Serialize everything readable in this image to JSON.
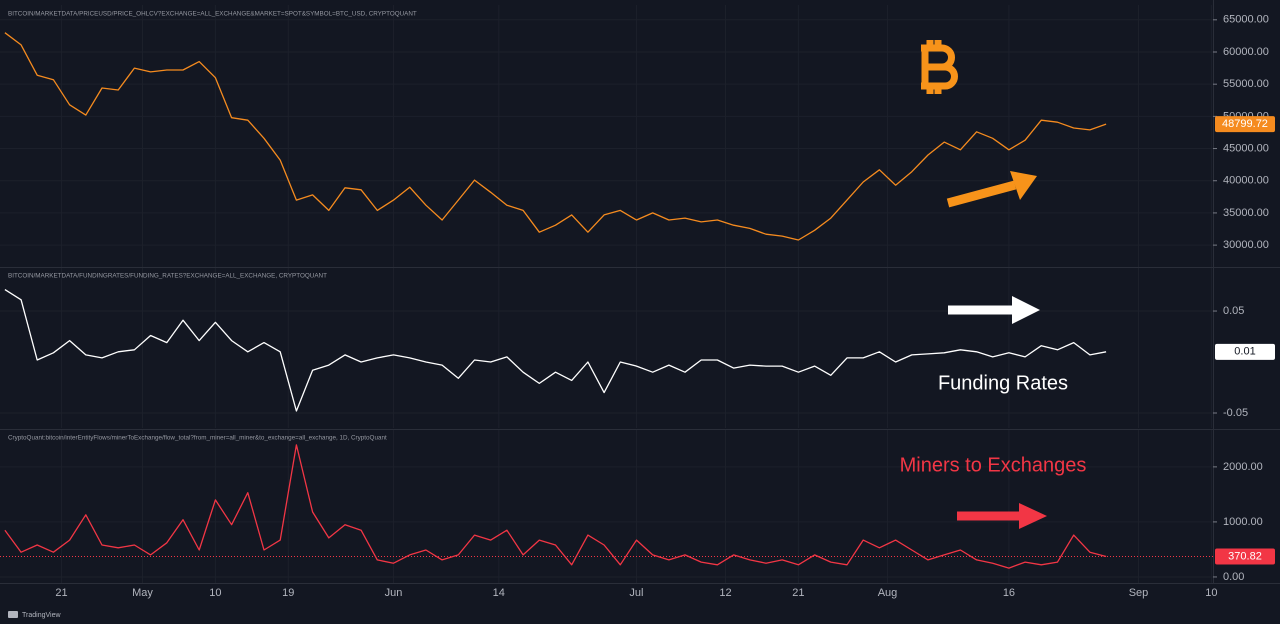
{
  "chart_data": [
    {
      "type": "line",
      "title": "BITCOIN/MARKETDATA/PRICEUSD/PRICE_OHLCV?EXCHANGE=ALL_EXCHANGE&MARKET=SPOT&SYMBOL=BTC_USD, CRYPTOQUANT",
      "series": [
        {
          "color": "#f58b1f",
          "x": [
            0,
            2,
            4,
            6,
            8,
            10,
            12,
            14,
            16,
            18,
            20,
            22,
            24,
            26,
            28,
            30,
            32,
            34,
            36,
            38,
            40,
            42,
            44,
            46,
            48,
            50,
            52,
            54,
            56,
            58,
            60,
            62,
            64,
            66,
            68,
            70,
            72,
            74,
            76,
            78,
            80,
            82,
            84,
            86,
            88,
            90,
            92,
            94,
            96,
            98,
            100,
            102,
            104,
            106,
            108,
            110,
            112,
            114,
            116,
            118,
            120,
            122,
            124,
            126,
            128,
            130,
            132,
            134,
            136
          ],
          "values": [
            63000,
            61100,
            56400,
            55700,
            51800,
            50200,
            54400,
            54100,
            57500,
            56900,
            57200,
            57200,
            58500,
            56000,
            49800,
            49400,
            46600,
            43200,
            37000,
            37800,
            35400,
            38900,
            38600,
            35400,
            37000,
            39000,
            36200,
            33900,
            37000,
            40100,
            38200,
            36200,
            35400,
            32000,
            33100,
            34700,
            32000,
            34700,
            35400,
            33900,
            35000,
            33900,
            34200,
            33600,
            33900,
            33100,
            32600,
            31700,
            31400,
            30800,
            32300,
            34200,
            37000,
            39800,
            41700,
            39300,
            41400,
            44000,
            46000,
            44800,
            47600,
            46600,
            44800,
            46300,
            49400,
            49100,
            48200,
            47900,
            48799.72
          ]
        }
      ],
      "last_value": 48799.72,
      "ylim": [
        26600,
        67300
      ],
      "yticks": [
        {
          "value": 30000,
          "label": "30000.00"
        },
        {
          "value": 35000,
          "label": "35000.00"
        },
        {
          "value": 40000,
          "label": "40000.00"
        },
        {
          "value": 45000,
          "label": "45000.00"
        },
        {
          "value": 50000,
          "label": "50000.00"
        },
        {
          "value": 55000,
          "label": "55000.00"
        },
        {
          "value": 60000,
          "label": "60000.00"
        },
        {
          "value": 65000,
          "label": "65000.00"
        }
      ]
    },
    {
      "type": "line",
      "title": "BITCOIN/MARKETDATA/FUNDINGRATES/FUNDING_RATES?EXCHANGE=ALL_EXCHANGE, CRYPTOQUANT",
      "annotation": "Funding Rates",
      "series": [
        {
          "color": "#ffffff",
          "x": [
            0,
            2,
            4,
            6,
            8,
            10,
            12,
            14,
            16,
            18,
            20,
            22,
            24,
            26,
            28,
            30,
            32,
            34,
            36,
            38,
            40,
            42,
            44,
            46,
            48,
            50,
            52,
            54,
            56,
            58,
            60,
            62,
            64,
            66,
            68,
            70,
            72,
            74,
            76,
            78,
            80,
            82,
            84,
            86,
            88,
            90,
            92,
            94,
            96,
            98,
            100,
            102,
            104,
            106,
            108,
            110,
            112,
            114,
            116,
            118,
            120,
            122,
            124,
            126,
            128,
            130,
            132,
            134,
            136
          ],
          "values": [
            0.071,
            0.061,
            0.002,
            0.009,
            0.021,
            0.007,
            0.004,
            0.01,
            0.012,
            0.026,
            0.019,
            0.041,
            0.021,
            0.039,
            0.021,
            0.01,
            0.019,
            0.01,
            -0.048,
            -0.008,
            -0.003,
            0.007,
            0,
            0.004,
            0.007,
            0.004,
            0,
            -0.003,
            -0.016,
            0.002,
            0,
            0.005,
            -0.01,
            -0.021,
            -0.01,
            -0.018,
            0,
            -0.03,
            0,
            -0.004,
            -0.01,
            -0.003,
            -0.01,
            0.002,
            0.002,
            -0.006,
            -0.003,
            -0.004,
            -0.004,
            -0.01,
            -0.004,
            -0.013,
            0.004,
            0.004,
            0.01,
            0,
            0.007,
            0.008,
            0.009,
            0.012,
            0.01,
            0.005,
            0.009,
            0.005,
            0.016,
            0.012,
            0.019,
            0.007,
            0.01
          ]
        }
      ],
      "last_value": 0.01,
      "ylim": [
        -0.0647,
        0.0922
      ],
      "yticks": [
        -0.05,
        0.05
      ]
    },
    {
      "type": "line",
      "title": "CryptoQuant:bitcoin/interEntityFlows/minerToExchange/flow_total?from_miner=all_miner&to_exchange=all_exchange, 1D, CryptoQuant",
      "annotation": "Miners to Exchanges",
      "series": [
        {
          "color": "#f23645",
          "x": [
            0,
            2,
            4,
            6,
            8,
            10,
            12,
            14,
            16,
            18,
            20,
            22,
            24,
            26,
            28,
            30,
            32,
            34,
            36,
            38,
            40,
            42,
            44,
            46,
            48,
            50,
            52,
            54,
            56,
            58,
            60,
            62,
            64,
            66,
            68,
            70,
            72,
            74,
            76,
            78,
            80,
            82,
            84,
            86,
            88,
            90,
            92,
            94,
            96,
            98,
            100,
            102,
            104,
            106,
            108,
            110,
            112,
            114,
            116,
            118,
            120,
            122,
            124,
            126,
            128,
            130,
            132,
            134,
            136
          ],
          "values": [
            850,
            450,
            580,
            450,
            670,
            1130,
            580,
            530,
            580,
            400,
            620,
            1040,
            490,
            1400,
            950,
            1530,
            490,
            670,
            2400,
            1180,
            710,
            950,
            850,
            310,
            250,
            400,
            490,
            310,
            400,
            760,
            670,
            850,
            400,
            670,
            580,
            220,
            760,
            580,
            220,
            670,
            400,
            310,
            400,
            270,
            220,
            400,
            310,
            250,
            310,
            220,
            400,
            270,
            220,
            670,
            530,
            670,
            490,
            310,
            400,
            490,
            310,
            250,
            160,
            270,
            220,
            270,
            760,
            450,
            370.82
          ]
        }
      ],
      "last_value": 370.82,
      "ylim": [
        -110,
        2670
      ],
      "yticks": [
        {
          "value": 0,
          "label": "0.00"
        },
        {
          "value": 1000,
          "label": "1000.00"
        },
        {
          "value": 2000,
          "label": "2000.00"
        }
      ],
      "xlim": [
        -0.6,
        149.2
      ],
      "xticks": [
        {
          "value": 7,
          "label": "21"
        },
        {
          "value": 17,
          "label": "May"
        },
        {
          "value": 26,
          "label": "10"
        },
        {
          "value": 35,
          "label": "19"
        },
        {
          "value": 48,
          "label": "Jun"
        },
        {
          "value": 61,
          "label": "14"
        },
        {
          "value": 78,
          "label": "Jul"
        },
        {
          "value": 89,
          "label": "12"
        },
        {
          "value": 98,
          "label": "21"
        },
        {
          "value": 109,
          "label": "Aug"
        },
        {
          "value": 124,
          "label": "16"
        },
        {
          "value": 140,
          "label": "Sep"
        },
        {
          "value": 149,
          "label": "10"
        }
      ]
    }
  ],
  "footer": {
    "brand": "TradingView"
  }
}
